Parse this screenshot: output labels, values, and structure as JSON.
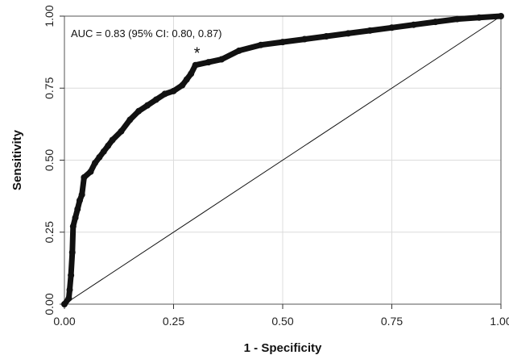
{
  "chart_data": {
    "type": "line",
    "title": "",
    "xlabel": "1 - Specificity",
    "ylabel": "Sensitivity",
    "xlim": [
      0,
      1
    ],
    "ylim": [
      0,
      1
    ],
    "x_ticks": [
      "0.00",
      "0.25",
      "0.50",
      "0.75",
      "1.00"
    ],
    "y_ticks": [
      "0.00",
      "0.25",
      "0.50",
      "0.75",
      "1.00"
    ],
    "grid": true,
    "annotation": "AUC = 0.83 (95% CI: 0.80, 0.87)",
    "marker_label": "*",
    "marker_point": {
      "x": 0.3,
      "y": 0.83
    },
    "series": [
      {
        "role": "roc-curve",
        "color": "#111111",
        "points": [
          [
            0.0,
            0.0
          ],
          [
            0.01,
            0.02
          ],
          [
            0.012,
            0.05
          ],
          [
            0.015,
            0.1
          ],
          [
            0.018,
            0.18
          ],
          [
            0.02,
            0.27
          ],
          [
            0.025,
            0.3
          ],
          [
            0.03,
            0.33
          ],
          [
            0.035,
            0.36
          ],
          [
            0.04,
            0.38
          ],
          [
            0.045,
            0.44
          ],
          [
            0.06,
            0.46
          ],
          [
            0.07,
            0.49
          ],
          [
            0.08,
            0.51
          ],
          [
            0.09,
            0.53
          ],
          [
            0.1,
            0.55
          ],
          [
            0.11,
            0.57
          ],
          [
            0.13,
            0.6
          ],
          [
            0.15,
            0.64
          ],
          [
            0.17,
            0.67
          ],
          [
            0.19,
            0.69
          ],
          [
            0.21,
            0.71
          ],
          [
            0.23,
            0.73
          ],
          [
            0.25,
            0.74
          ],
          [
            0.27,
            0.76
          ],
          [
            0.28,
            0.78
          ],
          [
            0.29,
            0.8
          ],
          [
            0.3,
            0.83
          ],
          [
            0.33,
            0.84
          ],
          [
            0.36,
            0.85
          ],
          [
            0.4,
            0.88
          ],
          [
            0.45,
            0.9
          ],
          [
            0.5,
            0.91
          ],
          [
            0.55,
            0.92
          ],
          [
            0.6,
            0.93
          ],
          [
            0.65,
            0.94
          ],
          [
            0.7,
            0.95
          ],
          [
            0.75,
            0.96
          ],
          [
            0.8,
            0.97
          ],
          [
            0.85,
            0.98
          ],
          [
            0.9,
            0.99
          ],
          [
            0.95,
            0.995
          ],
          [
            1.0,
            1.0
          ]
        ]
      },
      {
        "role": "reference-line",
        "color": "#111111",
        "points": [
          [
            0,
            0
          ],
          [
            1,
            1
          ]
        ]
      }
    ]
  }
}
